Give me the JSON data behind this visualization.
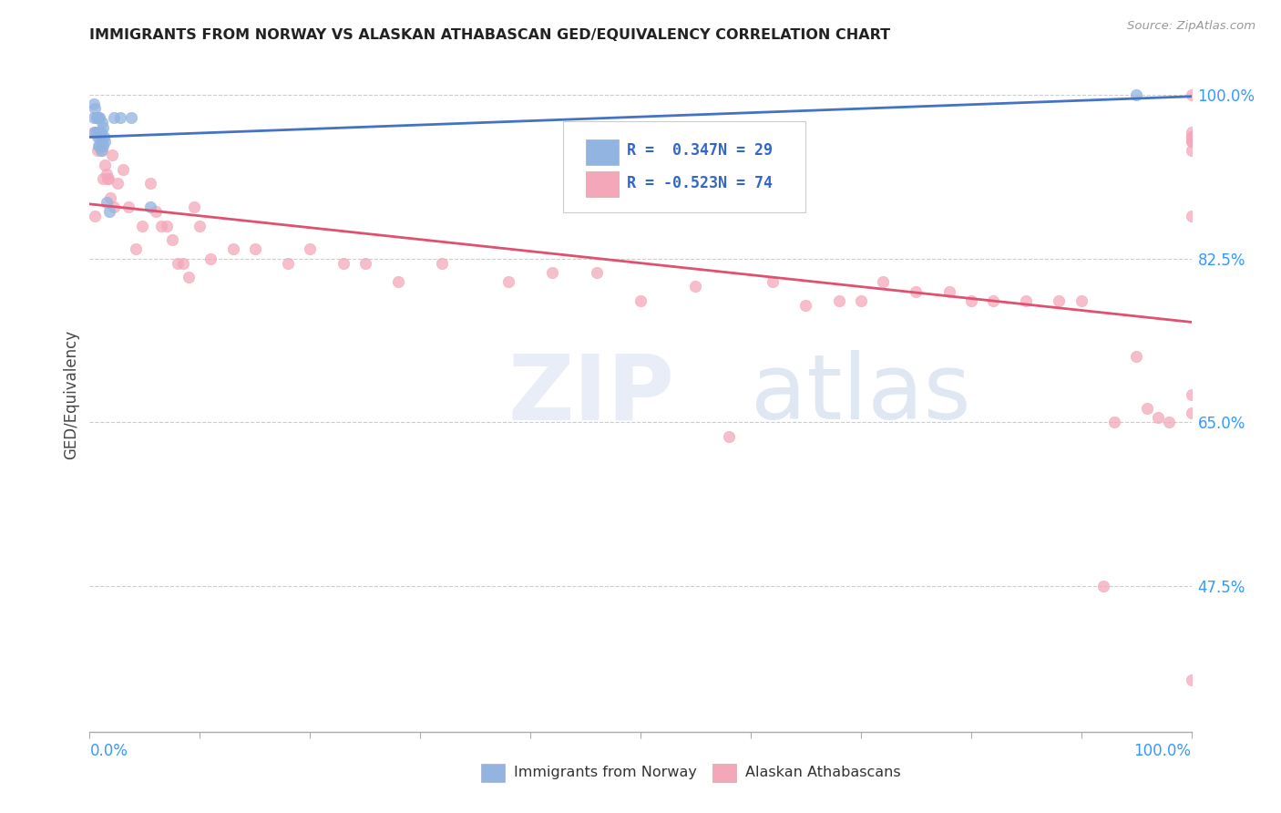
{
  "title": "IMMIGRANTS FROM NORWAY VS ALASKAN ATHABASCAN GED/EQUIVALENCY CORRELATION CHART",
  "source": "Source: ZipAtlas.com",
  "ylabel": "GED/Equivalency",
  "ytick_labels": [
    "100.0%",
    "82.5%",
    "65.0%",
    "47.5%"
  ],
  "ytick_values": [
    1.0,
    0.825,
    0.65,
    0.475
  ],
  "legend_blue_label": "Immigrants from Norway",
  "legend_pink_label": "Alaskan Athabascans",
  "legend_r_blue": "R =  0.347",
  "legend_n_blue": "N = 29",
  "legend_r_pink": "R = -0.523",
  "legend_n_pink": "N = 74",
  "blue_color": "#92b4e0",
  "pink_color": "#f4a7b9",
  "blue_line_color": "#4472c4",
  "pink_line_color": "#e05070",
  "blue_scatter_x": [
    0.004,
    0.004,
    0.005,
    0.005,
    0.006,
    0.006,
    0.007,
    0.007,
    0.008,
    0.008,
    0.008,
    0.009,
    0.009,
    0.009,
    0.01,
    0.01,
    0.011,
    0.011,
    0.012,
    0.012,
    0.013,
    0.014,
    0.015,
    0.018,
    0.022,
    0.028,
    0.038,
    0.055,
    0.95
  ],
  "blue_scatter_y": [
    0.975,
    0.99,
    0.985,
    0.96,
    0.975,
    0.96,
    0.975,
    0.955,
    0.975,
    0.96,
    0.945,
    0.975,
    0.96,
    0.945,
    0.96,
    0.94,
    0.97,
    0.95,
    0.965,
    0.945,
    0.955,
    0.95,
    0.885,
    0.875,
    0.975,
    0.975,
    0.975,
    0.88,
    1.0
  ],
  "pink_scatter_x": [
    0.004,
    0.005,
    0.007,
    0.008,
    0.009,
    0.01,
    0.011,
    0.012,
    0.014,
    0.015,
    0.016,
    0.017,
    0.019,
    0.02,
    0.022,
    0.025,
    0.03,
    0.035,
    0.042,
    0.048,
    0.055,
    0.06,
    0.065,
    0.07,
    0.075,
    0.08,
    0.085,
    0.09,
    0.095,
    0.1,
    0.11,
    0.13,
    0.15,
    0.18,
    0.2,
    0.23,
    0.25,
    0.28,
    0.32,
    0.38,
    0.42,
    0.46,
    0.5,
    0.55,
    0.58,
    0.62,
    0.65,
    0.68,
    0.7,
    0.72,
    0.75,
    0.78,
    0.8,
    0.82,
    0.85,
    0.88,
    0.9,
    0.92,
    0.93,
    0.95,
    0.96,
    0.97,
    0.98,
    1.0,
    1.0,
    1.0,
    1.0,
    1.0,
    1.0,
    1.0,
    1.0,
    1.0,
    1.0,
    1.0
  ],
  "pink_scatter_y": [
    0.96,
    0.87,
    0.94,
    0.96,
    0.955,
    0.95,
    0.94,
    0.91,
    0.925,
    0.915,
    0.91,
    0.91,
    0.89,
    0.935,
    0.88,
    0.905,
    0.92,
    0.88,
    0.835,
    0.86,
    0.905,
    0.875,
    0.86,
    0.86,
    0.845,
    0.82,
    0.82,
    0.805,
    0.88,
    0.86,
    0.825,
    0.835,
    0.835,
    0.82,
    0.835,
    0.82,
    0.82,
    0.8,
    0.82,
    0.8,
    0.81,
    0.81,
    0.78,
    0.795,
    0.635,
    0.8,
    0.775,
    0.78,
    0.78,
    0.8,
    0.79,
    0.79,
    0.78,
    0.78,
    0.78,
    0.78,
    0.78,
    0.475,
    0.65,
    0.72,
    0.665,
    0.655,
    0.65,
    0.68,
    0.66,
    0.375,
    0.95,
    1.0,
    0.955,
    0.87,
    0.94,
    0.96,
    0.955,
    0.95
  ],
  "xlim": [
    0.0,
    1.0
  ],
  "ylim": [
    0.32,
    1.04
  ],
  "background_color": "#ffffff",
  "grid_color": "#cccccc"
}
